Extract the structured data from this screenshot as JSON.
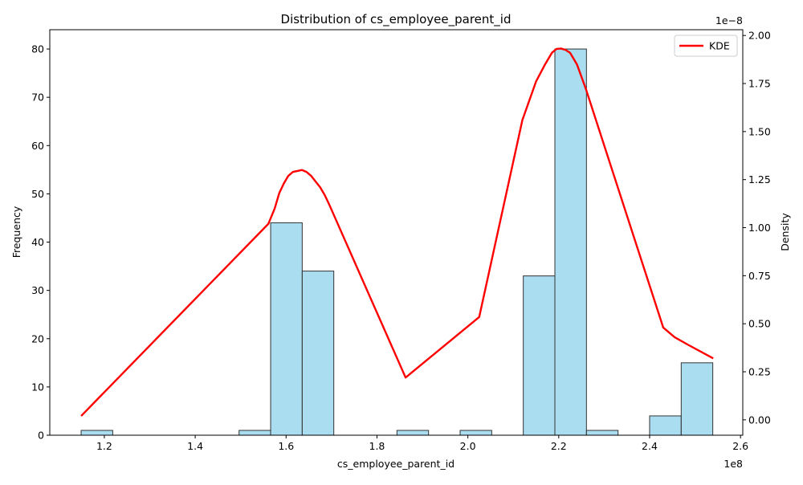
{
  "chart_data": {
    "type": "bar",
    "title": "Distribution of cs_employee_parent_id",
    "xlabel": "cs_employee_parent_id",
    "ylabel": "Frequency",
    "y2label": "Density",
    "x_offset_label": "1e8",
    "y2_offset_label": "1e−8",
    "xlim": [
      108000000,
      260500000
    ],
    "ylim": [
      0,
      84
    ],
    "y2lim": [
      -0.08,
      2.03
    ],
    "x_ticks": [
      1.2,
      1.4,
      1.6,
      1.8,
      2.0,
      2.2,
      2.4,
      2.6
    ],
    "x_tick_labels": [
      "1.2",
      "1.4",
      "1.6",
      "1.8",
      "2.0",
      "2.2",
      "2.4",
      "2.6"
    ],
    "y_ticks": [
      0,
      10,
      20,
      30,
      40,
      50,
      60,
      70,
      80
    ],
    "y_tick_labels": [
      "0",
      "10",
      "20",
      "30",
      "40",
      "50",
      "60",
      "70",
      "80"
    ],
    "y2_ticks": [
      0.0,
      0.25,
      0.5,
      0.75,
      1.0,
      1.25,
      1.5,
      1.75,
      2.0
    ],
    "y2_tick_labels": [
      "0.00",
      "0.25",
      "0.50",
      "0.75",
      "1.00",
      "1.25",
      "1.50",
      "1.75",
      "2.00"
    ],
    "bars": {
      "bin_edges": [
        114900000,
        121850000,
        128800000,
        135750000,
        142700000,
        149650000,
        156600000,
        163550000,
        170500000,
        177450000,
        184400000,
        191350000,
        198300000,
        205250000,
        212200000,
        219150000,
        226100000,
        233050000,
        240000000,
        246950000,
        253900000
      ],
      "values": [
        1,
        0,
        0,
        0,
        0,
        1,
        44,
        34,
        0,
        0,
        1,
        0,
        1,
        0,
        33,
        80,
        1,
        0,
        4,
        15
      ],
      "color": "#87CEEB",
      "edge_color": "#333333"
    },
    "series": [
      {
        "name": "KDE",
        "color": "#ff0000",
        "x": [
          114900000,
          156100000,
          157500000,
          158500000,
          159500000,
          160500000,
          161500000,
          162500000,
          163500000,
          164500000,
          165500000,
          166500000,
          167500000,
          168500000,
          169500000,
          186300000,
          202500000,
          212000000,
          215000000,
          217000000,
          218500000,
          219500000,
          220500000,
          221500000,
          222500000,
          224000000,
          226000000,
          243000000,
          245500000,
          248500000,
          254000000
        ],
        "y": [
          0.02,
          1.02,
          1.1,
          1.18,
          1.23,
          1.27,
          1.29,
          1.295,
          1.3,
          1.29,
          1.27,
          1.24,
          1.21,
          1.17,
          1.12,
          0.22,
          0.535,
          1.56,
          1.76,
          1.85,
          1.91,
          1.93,
          1.932,
          1.925,
          1.91,
          1.85,
          1.72,
          0.48,
          0.43,
          0.39,
          0.32
        ]
      }
    ],
    "legend": {
      "position": "top-right",
      "entries": [
        "KDE"
      ]
    },
    "grid": false
  }
}
